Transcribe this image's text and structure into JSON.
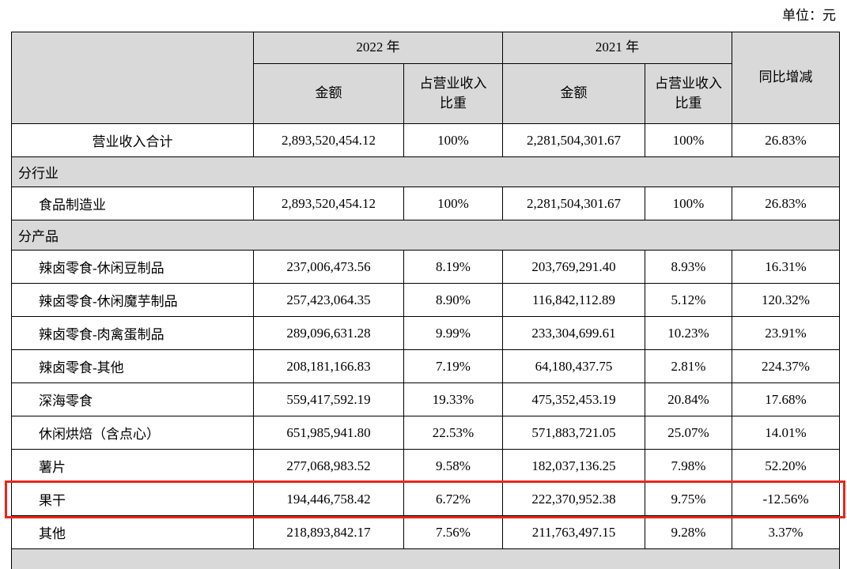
{
  "unit_label": "单位：元",
  "colors": {
    "header_bg": "#d9d9d9",
    "highlight_border": "#e8261d"
  },
  "table": {
    "header": {
      "year_2022": "2022 年",
      "year_2021": "2021 年",
      "amount": "金额",
      "pct_line1": "占营业收入",
      "pct_line2": "比重",
      "yoy": "同比增减"
    },
    "rows": [
      {
        "type": "data",
        "center": true,
        "name": "营业收入合计",
        "a2022": "2,893,520,454.12",
        "p2022": "100%",
        "a2021": "2,281,504,301.67",
        "p2021": "100%",
        "yoy": "26.83%"
      },
      {
        "type": "section",
        "name": "分行业"
      },
      {
        "type": "data",
        "name": "食品制造业",
        "a2022": "2,893,520,454.12",
        "p2022": "100%",
        "a2021": "2,281,504,301.67",
        "p2021": "100%",
        "yoy": "26.83%"
      },
      {
        "type": "section",
        "name": "分产品"
      },
      {
        "type": "data",
        "name": "辣卤零食-休闲豆制品",
        "a2022": "237,006,473.56",
        "p2022": "8.19%",
        "a2021": "203,769,291.40",
        "p2021": "8.93%",
        "yoy": "16.31%"
      },
      {
        "type": "data",
        "name": "辣卤零食-休闲魔芋制品",
        "a2022": "257,423,064.35",
        "p2022": "8.90%",
        "a2021": "116,842,112.89",
        "p2021": "5.12%",
        "yoy": "120.32%"
      },
      {
        "type": "data",
        "name": "辣卤零食-肉禽蛋制品",
        "a2022": "289,096,631.28",
        "p2022": "9.99%",
        "a2021": "233,304,699.61",
        "p2021": "10.23%",
        "yoy": "23.91%"
      },
      {
        "type": "data",
        "name": "辣卤零食-其他",
        "a2022": "208,181,166.83",
        "p2022": "7.19%",
        "a2021": "64,180,437.75",
        "p2021": "2.81%",
        "yoy": "224.37%"
      },
      {
        "type": "data",
        "name": "深海零食",
        "a2022": "559,417,592.19",
        "p2022": "19.33%",
        "a2021": "475,352,453.19",
        "p2021": "20.84%",
        "yoy": "17.68%"
      },
      {
        "type": "data",
        "name": "休闲烘焙（含点心）",
        "a2022": "651,985,941.80",
        "p2022": "22.53%",
        "a2021": "571,883,721.05",
        "p2021": "25.07%",
        "yoy": "14.01%"
      },
      {
        "type": "data",
        "name": "薯片",
        "a2022": "277,068,983.52",
        "p2022": "9.58%",
        "a2021": "182,037,136.25",
        "p2021": "7.98%",
        "yoy": "52.20%"
      },
      {
        "type": "data",
        "name": "果干",
        "highlight": true,
        "a2022": "194,446,758.42",
        "p2022": "6.72%",
        "a2021": "222,370,952.38",
        "p2021": "9.75%",
        "yoy": "-12.56%"
      },
      {
        "type": "data",
        "name": "其他",
        "a2022": "218,893,842.17",
        "p2022": "7.56%",
        "a2021": "211,763,497.15",
        "p2021": "9.28%",
        "yoy": "3.37%"
      },
      {
        "type": "section",
        "name": ""
      }
    ]
  }
}
